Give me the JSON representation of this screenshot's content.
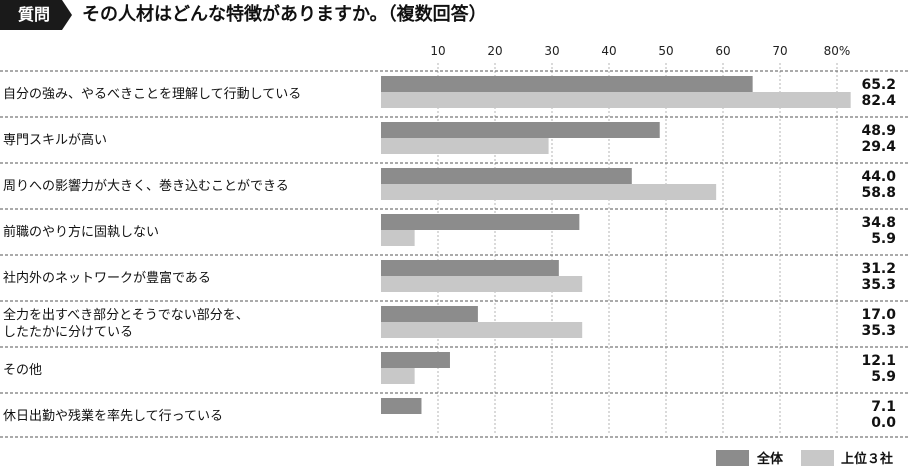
{
  "header": {
    "badge": "質問",
    "question": "その人材はどんな特徴がありますか。（複数回答）"
  },
  "colors": {
    "overall": "#8c8c8c",
    "top3": "#c8c8c8",
    "badge": "#1a1a1a"
  },
  "chart_data": {
    "type": "bar",
    "orientation": "horizontal",
    "title": "",
    "xlabel": "",
    "ylabel": "",
    "xlim": [
      0,
      80
    ],
    "ticks": [
      {
        "value": 10,
        "label": "10"
      },
      {
        "value": 20,
        "label": "20"
      },
      {
        "value": 30,
        "label": "30"
      },
      {
        "value": 40,
        "label": "40"
      },
      {
        "value": 50,
        "label": "50"
      },
      {
        "value": 60,
        "label": "60"
      },
      {
        "value": 70,
        "label": "70"
      },
      {
        "value": 80,
        "label": "80%"
      }
    ],
    "categories": [
      [
        "自分の強み、やるべきことを理解して行動している"
      ],
      [
        "専門スキルが高い"
      ],
      [
        "周りへの影響力が大きく、巻き込むことができる"
      ],
      [
        "前職のやり方に固執しない"
      ],
      [
        "社内外のネットワークが豊富である"
      ],
      [
        "全力を出すべき部分とそうでない部分を、",
        "したたかに分けている"
      ],
      [
        "その他"
      ],
      [
        "休日出勤や残業を率先して行っている"
      ]
    ],
    "series": [
      {
        "name": "全体",
        "values": [
          65.2,
          48.9,
          44.0,
          34.8,
          31.2,
          17.0,
          12.1,
          7.1
        ],
        "labels": [
          "65.2",
          "48.9",
          "44.0",
          "34.8",
          "31.2",
          "17.0",
          "12.1",
          "7.1"
        ]
      },
      {
        "name": "上位３社",
        "values": [
          82.4,
          29.4,
          58.8,
          5.9,
          35.3,
          35.3,
          5.9,
          0.0
        ],
        "labels": [
          "82.4",
          "29.4",
          "58.8",
          "5.9",
          "35.3",
          "35.3",
          "5.9",
          "0.0"
        ]
      }
    ],
    "grid": true,
    "legend_position": "bottom-right"
  }
}
